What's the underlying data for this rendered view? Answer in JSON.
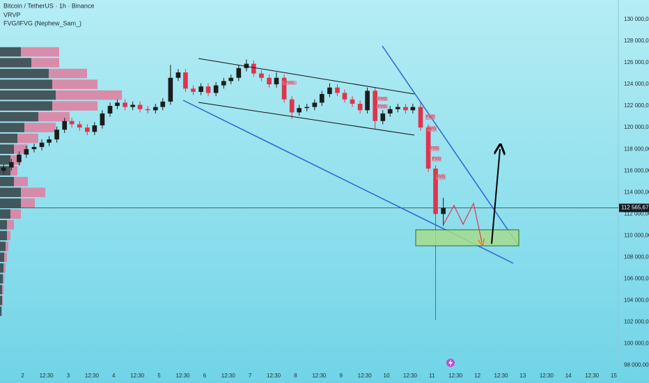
{
  "chart_data": {
    "type": "candlestick",
    "title": "Bitcoin / TetherUS · 1h · Binance",
    "indicators": [
      "VRVP",
      "FVG/IFVG (Nephew_Sam_)"
    ],
    "up_color": "#1c1c1c",
    "down_color": "#e0344d",
    "x": [
      1.58,
      1.75,
      1.92,
      2.08,
      2.25,
      2.42,
      2.58,
      2.75,
      2.92,
      3.08,
      3.25,
      3.42,
      3.58,
      3.75,
      3.92,
      4.08,
      4.25,
      4.42,
      4.58,
      4.75,
      4.92,
      5.08,
      5.25,
      5.42,
      5.58,
      5.75,
      5.92,
      6.08,
      6.25,
      6.42,
      6.58,
      6.75,
      6.92,
      7.08,
      7.25,
      7.42,
      7.58,
      7.75,
      7.92,
      8.08,
      8.25,
      8.42,
      8.58,
      8.75,
      8.92,
      9.08,
      9.25,
      9.42,
      9.58,
      9.75,
      9.92,
      10.08,
      10.25,
      10.42,
      10.58,
      10.75,
      10.92,
      11.08,
      11.25
    ],
    "open": [
      116000,
      116300,
      116800,
      117500,
      118000,
      118200,
      118600,
      118900,
      119800,
      120600,
      120300,
      120000,
      119600,
      120200,
      121300,
      122000,
      122300,
      121900,
      122100,
      121700,
      121600,
      121900,
      122400,
      124600,
      125100,
      123600,
      123300,
      123800,
      123200,
      123900,
      124300,
      124600,
      125500,
      125900,
      125000,
      124600,
      124000,
      124600,
      122600,
      121400,
      121800,
      121900,
      122300,
      123100,
      123700,
      123200,
      122600,
      122200,
      121600,
      123400,
      120600,
      121300,
      121700,
      121900,
      121600,
      121900,
      120000,
      116200,
      112000
    ],
    "high": [
      116600,
      117100,
      117800,
      118300,
      118500,
      118900,
      119200,
      120100,
      120900,
      120900,
      120600,
      120300,
      120500,
      121600,
      122300,
      122600,
      122600,
      122400,
      122400,
      122000,
      122200,
      122700,
      125800,
      125400,
      125400,
      123900,
      124100,
      124100,
      124200,
      124600,
      124900,
      125800,
      126300,
      126200,
      125300,
      124900,
      125100,
      124900,
      122900,
      122100,
      122200,
      122600,
      123400,
      124100,
      124000,
      123500,
      122900,
      122500,
      123700,
      123700,
      121600,
      122000,
      122200,
      122200,
      122200,
      122400,
      120300,
      116500,
      113500
    ],
    "low": [
      115700,
      116000,
      116500,
      117200,
      117700,
      117900,
      118300,
      118600,
      119500,
      120000,
      119700,
      119300,
      119300,
      119900,
      121000,
      121700,
      121600,
      121600,
      121400,
      121300,
      121300,
      121600,
      122100,
      124300,
      123300,
      123000,
      123000,
      122900,
      122900,
      123600,
      124000,
      124300,
      125200,
      124700,
      124300,
      123700,
      123700,
      122300,
      120800,
      121100,
      121500,
      121600,
      122000,
      122800,
      122900,
      122300,
      121900,
      121300,
      121300,
      119900,
      120300,
      121000,
      121400,
      121300,
      121300,
      119700,
      115900,
      102200,
      110900
    ],
    "close": [
      116300,
      116800,
      117500,
      118000,
      118200,
      118600,
      118900,
      119800,
      120600,
      120300,
      120000,
      119600,
      120200,
      121300,
      122000,
      122300,
      121900,
      122100,
      121700,
      121600,
      121900,
      122400,
      124600,
      125100,
      123600,
      123300,
      123800,
      123200,
      123900,
      124300,
      124600,
      125500,
      125900,
      125000,
      124600,
      124000,
      124600,
      122600,
      121400,
      121800,
      121900,
      122300,
      123100,
      123700,
      123200,
      122600,
      122200,
      121600,
      123400,
      120600,
      121300,
      121700,
      121900,
      121600,
      121900,
      120000,
      116200,
      112000,
      112565.67
    ],
    "last_price": {
      "value": 112565.67,
      "label": "112 565,67"
    },
    "xlim": [
      1.5,
      15.1
    ],
    "ylim": [
      131800,
      97650
    ],
    "xticks": [
      2,
      {
        "value": 2.52,
        "label": "12:30"
      },
      3,
      {
        "value": 3.52,
        "label": "12:30"
      },
      4,
      {
        "value": 4.52,
        "label": "12:30"
      },
      5,
      {
        "value": 5.52,
        "label": "12:30"
      },
      6,
      {
        "value": 6.52,
        "label": "12:30"
      },
      7,
      {
        "value": 7.52,
        "label": "12:30"
      },
      8,
      {
        "value": 8.52,
        "label": "12:30"
      },
      9,
      {
        "value": 9.52,
        "label": "12:30"
      },
      10,
      {
        "value": 10.52,
        "label": "12:30"
      },
      11,
      {
        "value": 11.52,
        "label": "12:30"
      },
      12,
      {
        "value": 12.52,
        "label": "12:30"
      },
      13,
      {
        "value": 13.52,
        "label": "12:30"
      },
      14,
      {
        "value": 14.52,
        "label": "12:30"
      },
      15
    ],
    "yticks": [
      {
        "value": 130000,
        "label": "130 000,00"
      },
      {
        "value": 128000,
        "label": "128 000,00"
      },
      {
        "value": 126000,
        "label": "126 000,00"
      },
      {
        "value": 124000,
        "label": "124 000,00"
      },
      {
        "value": 122000,
        "label": "122 000,00"
      },
      {
        "value": 120000,
        "label": "120 000,00"
      },
      {
        "value": 118000,
        "label": "118 000,00"
      },
      {
        "value": 116000,
        "label": "116 000,00"
      },
      {
        "value": 114000,
        "label": "114 000,00"
      },
      {
        "value": 112000,
        "label": "112 000,00"
      },
      {
        "value": 110000,
        "label": "110 000,00"
      },
      {
        "value": 108000,
        "label": "108 000,00"
      },
      {
        "value": 106000,
        "label": "106 000,00"
      },
      {
        "value": 104000,
        "label": "104 000,00"
      },
      {
        "value": 102000,
        "label": "102 000,00"
      },
      {
        "value": 100000,
        "label": "100 000,00"
      },
      {
        "value": 98000,
        "label": "98 000,00"
      }
    ],
    "grid": false,
    "volume_profile": {
      "prices": [
        127000,
        126000,
        125000,
        124000,
        123000,
        122000,
        121000,
        120000,
        119000,
        118000,
        117000,
        116000,
        115000,
        114000,
        113000,
        112000,
        111000,
        110000,
        109000,
        108000,
        107000,
        106000,
        105000,
        104000,
        103000
      ],
      "inner": [
        30,
        45,
        70,
        75,
        80,
        75,
        55,
        35,
        25,
        20,
        15,
        15,
        20,
        30,
        30,
        15,
        10,
        10,
        8,
        6,
        5,
        4,
        3,
        3,
        2
      ],
      "outer": [
        55,
        40,
        55,
        65,
        95,
        65,
        45,
        45,
        30,
        20,
        15,
        10,
        20,
        35,
        20,
        15,
        10,
        5,
        4,
        4,
        3,
        2,
        2,
        1,
        1
      ],
      "inner_color": "#3a474c",
      "outer_color": "#e27b9d"
    },
    "fvg_labels": [
      "IFVG",
      "FVG",
      "FVG",
      "FVG",
      "FVG",
      "FVG",
      "FVG",
      "FVG"
    ]
  }
}
